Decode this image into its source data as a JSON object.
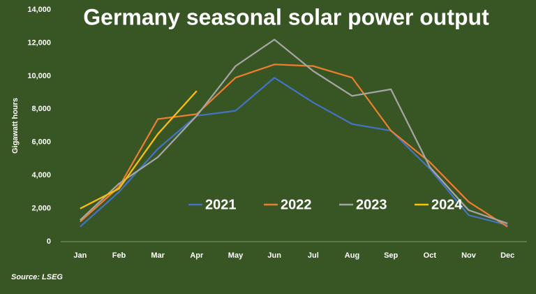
{
  "chart_data": {
    "type": "line",
    "title": "Germany seasonal solar power output",
    "ylabel": "Gigawatt hours",
    "source": "Source: LSEG",
    "categories": [
      "Jan",
      "Feb",
      "Mar",
      "Apr",
      "May",
      "Jun",
      "Jul",
      "Aug",
      "Sep",
      "Oct",
      "Nov",
      "Dec"
    ],
    "series": [
      {
        "name": "2021",
        "color": "#4472c4",
        "values": [
          900,
          3000,
          5600,
          7600,
          7900,
          9900,
          8400,
          7100,
          6700,
          4400,
          1600,
          1000
        ]
      },
      {
        "name": "2022",
        "color": "#ed7d31",
        "values": [
          1200,
          3300,
          7400,
          7700,
          9900,
          10700,
          10600,
          9900,
          6700,
          4800,
          2400,
          900
        ]
      },
      {
        "name": "2023",
        "color": "#a5a5a5",
        "values": [
          1300,
          3500,
          5100,
          7600,
          10600,
          12200,
          10300,
          8800,
          9200,
          4500,
          1900,
          1100
        ]
      },
      {
        "name": "2024",
        "color": "#ffc000",
        "values": [
          2000,
          3200,
          6500,
          9100,
          null,
          null,
          null,
          null,
          null,
          null,
          null,
          null
        ]
      }
    ],
    "ylim": [
      0,
      14000
    ],
    "yticks": [
      0,
      {
        "value": 2000,
        "label": "2,000"
      },
      {
        "value": 4000,
        "label": "4,000"
      },
      {
        "value": 6000,
        "label": "6,000"
      },
      {
        "value": 8000,
        "label": "8,000"
      },
      {
        "value": 10000,
        "label": "10,000"
      },
      {
        "value": 12000,
        "label": "12,000"
      },
      {
        "value": 14000,
        "label": "14,000"
      }
    ],
    "grid": false,
    "legend": "center"
  }
}
